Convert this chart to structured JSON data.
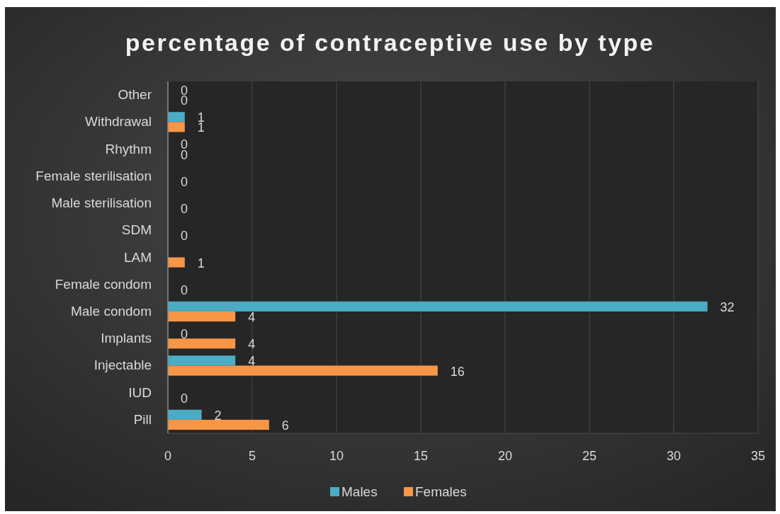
{
  "chart_data": {
    "type": "bar",
    "orientation": "horizontal",
    "title": "percentage of contraceptive use by type",
    "categories": [
      "Other",
      "Withdrawal",
      "Rhythm",
      "Female sterilisation",
      "Male sterilisation",
      "SDM",
      "LAM",
      "Female condom",
      "Male condom",
      "Implants",
      "Injectable",
      "IUD",
      "Pill"
    ],
    "series": [
      {
        "name": "Males",
        "color": "#4bacc6",
        "values": [
          0,
          1,
          0,
          null,
          null,
          null,
          null,
          null,
          32,
          0,
          4,
          null,
          2
        ]
      },
      {
        "name": "Females",
        "color": "#f79646",
        "values": [
          0,
          1,
          0,
          0,
          0,
          0,
          1,
          0,
          4,
          4,
          16,
          0,
          6
        ]
      }
    ],
    "xlim": [
      0,
      35
    ],
    "xticks": [
      0,
      5,
      10,
      15,
      20,
      25,
      30,
      35
    ],
    "grid": "x",
    "legend": "bottom",
    "data_labels": true
  }
}
